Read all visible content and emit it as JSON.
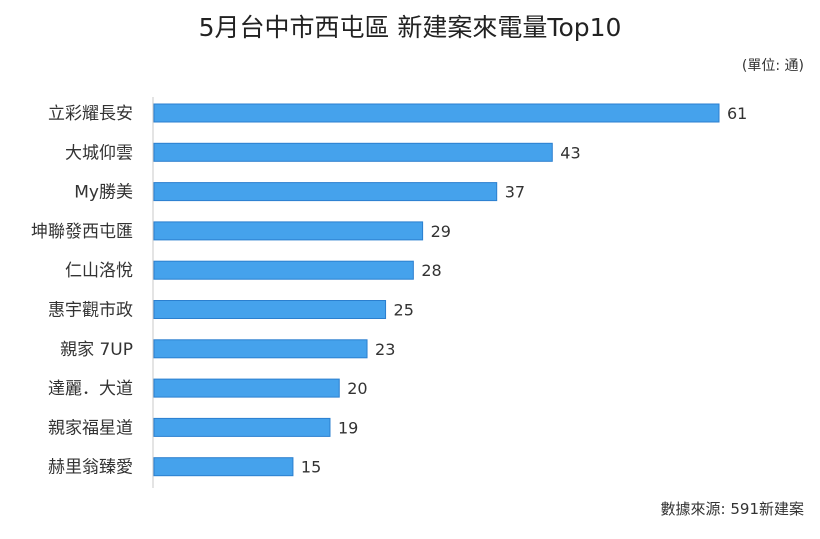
{
  "chart_data": {
    "type": "bar",
    "orientation": "horizontal",
    "title": "5月台中市西屯區 新建案來電量Top10",
    "unit_note": "(單位: 通)",
    "source": "數據來源: 591新建案",
    "categories": [
      "立彩耀長安",
      "大城仰雲",
      "My勝美",
      "坤聯發西屯匯",
      "仁山洛悅",
      "惠宇觀市政",
      "親家 7UP",
      "達麗．大道",
      "親家福星道",
      "赫里翁臻愛"
    ],
    "values": [
      61,
      43,
      37,
      29,
      28,
      25,
      23,
      20,
      19,
      15
    ],
    "bar_color": "#45a2ec",
    "bar_edge_color": "#2b7fcf",
    "xlim": [
      0,
      61
    ]
  }
}
